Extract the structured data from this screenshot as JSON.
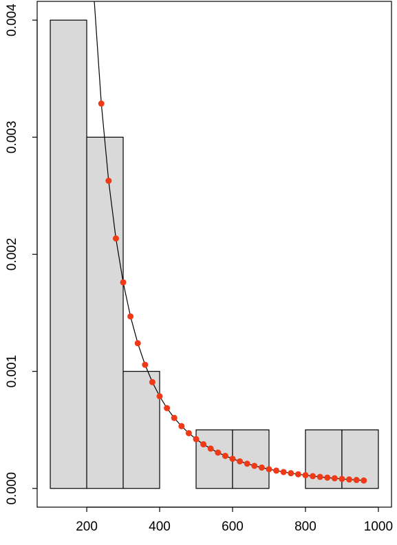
{
  "chart_data": {
    "type": "histogram",
    "bins": [
      100,
      200,
      300,
      400,
      500,
      600,
      700,
      800,
      900,
      1000
    ],
    "values": [
      0.004,
      0.003,
      0.001,
      0,
      0.0005,
      0.0005,
      0,
      0.0005,
      0.0005
    ],
    "color": "#d9d9d9",
    "edge_color": "#000000",
    "xlim": [
      64,
      1036
    ],
    "xticks": [
      200,
      400,
      600,
      800,
      1000
    ],
    "ylim": [
      -0.00016,
      0.00416
    ],
    "yticks": [
      {
        "value": 0,
        "label": "0.000"
      },
      0.001,
      0.002,
      0.003,
      0.004
    ],
    "overlay": {
      "type": "line",
      "color": "#f03a17",
      "line_color": "#000000",
      "x": [
        220,
        240,
        260,
        280,
        300,
        320,
        340,
        360,
        380,
        400,
        420,
        440,
        460,
        480,
        500,
        520,
        540,
        560,
        580,
        600,
        620,
        640,
        660,
        680,
        700,
        720,
        740,
        760,
        780,
        800,
        820,
        840,
        860,
        880,
        900,
        920,
        940,
        960
      ],
      "values": [
        0.004195,
        0.003287,
        0.002628,
        0.002135,
        0.00176,
        0.001469,
        0.00124,
        0.001056,
        0.000908,
        0.000787,
        0.000686,
        0.000602,
        0.000532,
        0.000472,
        0.000421,
        0.000377,
        0.00034,
        0.000306,
        0.000278,
        0.000253,
        0.000231,
        0.000211,
        0.000193,
        0.000178,
        0.000164,
        0.000152,
        0.00014,
        0.00013,
        0.000121,
        0.000113,
        0.000105,
        9.85e-05,
        9.22e-05,
        8.65e-05,
        8.12e-05,
        7.63e-05,
        7.18e-05,
        6.77e-05
      ]
    }
  }
}
